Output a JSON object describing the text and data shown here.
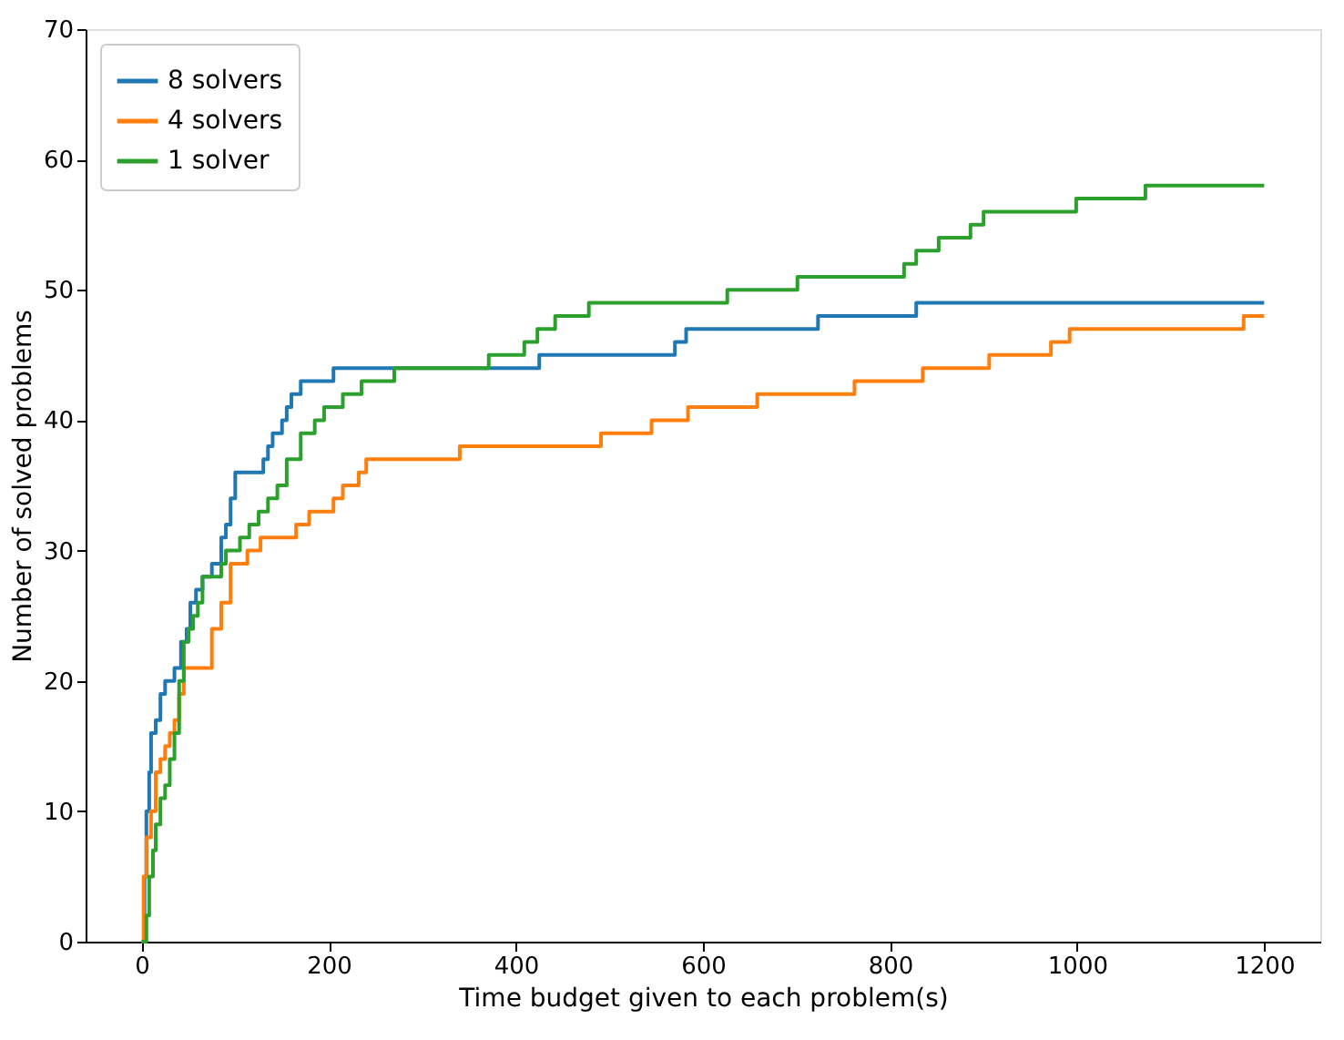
{
  "chart_data": {
    "type": "step",
    "xlabel": "Time budget given to each problem(s)",
    "ylabel": "Number of solved problems",
    "xlim": [
      -60,
      1260
    ],
    "xticks": [
      0,
      200,
      400,
      600,
      800,
      1000,
      1200
    ],
    "ylim": [
      0,
      70
    ],
    "yticks": [
      0,
      10,
      20,
      30,
      40,
      50,
      60,
      70
    ],
    "grid": false,
    "legend": "top left",
    "line_style": "solid",
    "marker": "none",
    "series": [
      {
        "name": "8 solvers",
        "color": "#1f77b4",
        "x": [
          0,
          3,
          5,
          8,
          10,
          15,
          20,
          25,
          35,
          42,
          48,
          52,
          58,
          65,
          75,
          85,
          90,
          95,
          100,
          130,
          135,
          140,
          150,
          155,
          160,
          170,
          205,
          425,
          570,
          582,
          723,
          828,
          1200
        ],
        "values": [
          0,
          5,
          10,
          13,
          16,
          17,
          19,
          20,
          21,
          23,
          24,
          26,
          27,
          28,
          29,
          31,
          32,
          34,
          36,
          37,
          38,
          39,
          40,
          41,
          42,
          43,
          44,
          45,
          46,
          47,
          48,
          49,
          49
        ]
      },
      {
        "name": "4 solvers",
        "color": "#ff7f0e",
        "x": [
          0,
          2,
          5,
          10,
          15,
          20,
          25,
          30,
          35,
          40,
          45,
          75,
          85,
          95,
          113,
          127,
          165,
          179,
          205,
          215,
          232,
          240,
          340,
          491,
          545,
          584,
          658,
          762,
          835,
          906,
          972,
          992,
          1178,
          1200
        ],
        "values": [
          0,
          5,
          8,
          10,
          13,
          14,
          15,
          16,
          17,
          19,
          21,
          24,
          26,
          29,
          30,
          31,
          32,
          33,
          34,
          35,
          36,
          37,
          38,
          39,
          40,
          41,
          42,
          43,
          44,
          45,
          46,
          47,
          48,
          48
        ]
      },
      {
        "name": "1 solver",
        "color": "#2ca02c",
        "x": [
          0,
          5,
          8,
          12,
          15,
          20,
          25,
          30,
          35,
          40,
          45,
          50,
          55,
          60,
          65,
          85,
          90,
          105,
          115,
          125,
          135,
          145,
          155,
          170,
          185,
          195,
          215,
          235,
          270,
          371,
          409,
          423,
          442,
          478,
          626,
          701,
          815,
          828,
          852,
          886,
          900,
          999,
          1073,
          1200
        ],
        "values": [
          0,
          2,
          5,
          7,
          9,
          11,
          12,
          14,
          16,
          20,
          23,
          24,
          25,
          26,
          28,
          29,
          30,
          31,
          32,
          33,
          34,
          35,
          37,
          39,
          40,
          41,
          42,
          43,
          44,
          45,
          46,
          47,
          48,
          49,
          50,
          51,
          52,
          53,
          54,
          55,
          56,
          57,
          58,
          58
        ]
      }
    ]
  }
}
